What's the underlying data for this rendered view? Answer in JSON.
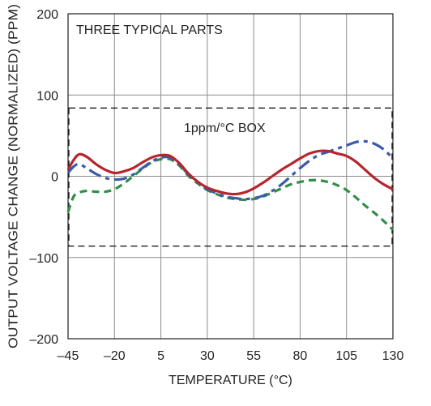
{
  "chart_data": {
    "type": "line",
    "title": "",
    "xlabel": "TEMPERATURE (°C)",
    "ylabel": "OUTPUT VOLTAGE CHANGE (NORMALIZED) (PPM)",
    "xlim": [
      -45,
      130
    ],
    "ylim": [
      -200,
      200
    ],
    "grid": true,
    "x_tick_labels": [
      "–45",
      "–20",
      "5",
      "30",
      "55",
      "80",
      "105",
      "130"
    ],
    "x_ticks": [
      -45,
      -20,
      5,
      30,
      55,
      80,
      105,
      130
    ],
    "y_tick_labels": [
      "200",
      "100",
      "0",
      "–100",
      "–200"
    ],
    "y_ticks": [
      200,
      100,
      0,
      -100,
      -200
    ],
    "annotations": {
      "parts_label": "THREE TYPICAL PARTS",
      "box_label": "1ppm/°C BOX"
    },
    "box": {
      "x": [
        -45,
        130
      ],
      "y": [
        -86,
        84
      ]
    },
    "series": [
      {
        "color": "#b5262e",
        "dash": "solid",
        "x": [
          -45,
          -42,
          -39,
          -35,
          -30,
          -25,
          -20,
          -15,
          -10,
          -5,
          0,
          5,
          10,
          15,
          20,
          25,
          30,
          35,
          40,
          45,
          50,
          55,
          60,
          65,
          70,
          75,
          80,
          85,
          90,
          95,
          100,
          105,
          110,
          115,
          120,
          125,
          130
        ],
        "y": [
          8,
          20,
          27,
          24,
          15,
          8,
          4,
          6,
          10,
          17,
          23,
          26,
          25,
          16,
          3,
          -7,
          -14,
          -18,
          -21,
          -22,
          -20,
          -15,
          -8,
          0,
          8,
          15,
          22,
          28,
          31,
          31,
          28,
          25,
          18,
          8,
          -2,
          -10,
          -16
        ]
      },
      {
        "color": "#3b5ba9",
        "dash": "dashdot",
        "x": [
          -45,
          -42,
          -39,
          -35,
          -30,
          -25,
          -20,
          -15,
          -10,
          -5,
          0,
          5,
          10,
          15,
          20,
          25,
          30,
          35,
          40,
          45,
          50,
          55,
          60,
          65,
          70,
          75,
          80,
          85,
          90,
          95,
          100,
          105,
          110,
          115,
          120,
          125,
          130
        ],
        "y": [
          4,
          12,
          15,
          10,
          3,
          -2,
          -4,
          -3,
          2,
          10,
          18,
          23,
          23,
          14,
          2,
          -8,
          -16,
          -21,
          -25,
          -27,
          -28,
          -27,
          -24,
          -18,
          -10,
          0,
          10,
          19,
          26,
          30,
          34,
          38,
          42,
          43,
          40,
          33,
          22
        ]
      },
      {
        "color": "#2f8f46",
        "dash": "dash",
        "x": [
          -45,
          -42,
          -39,
          -35,
          -30,
          -25,
          -20,
          -15,
          -10,
          -5,
          0,
          5,
          10,
          15,
          20,
          25,
          30,
          35,
          40,
          45,
          50,
          55,
          60,
          65,
          70,
          75,
          80,
          85,
          90,
          95,
          100,
          105,
          110,
          115,
          120,
          125,
          130
        ],
        "y": [
          -44,
          -25,
          -20,
          -18,
          -19,
          -19,
          -16,
          -9,
          0,
          9,
          17,
          21,
          21,
          13,
          0,
          -9,
          -17,
          -22,
          -26,
          -28,
          -29,
          -28,
          -25,
          -20,
          -15,
          -10,
          -7,
          -5,
          -5,
          -7,
          -11,
          -17,
          -26,
          -36,
          -45,
          -55,
          -66
        ]
      }
    ]
  }
}
